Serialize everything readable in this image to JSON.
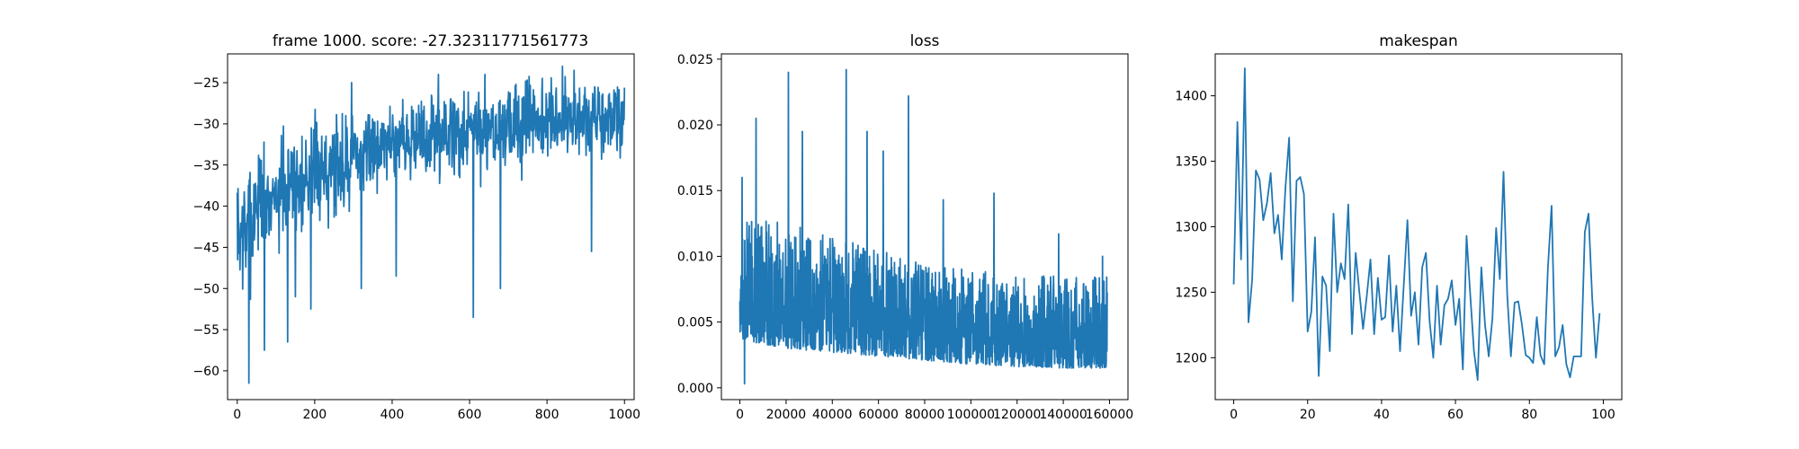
{
  "figure": {
    "background": "#ffffff",
    "line_color": "#1f77b4"
  },
  "chart_data": [
    {
      "type": "line",
      "title": "frame 1000. score: -27.32311771561773",
      "xlabel": "",
      "ylabel": "",
      "xlim": [
        -25,
        1025
      ],
      "ylim": [
        -63.5,
        -21.5
      ],
      "xticks": [
        0,
        200,
        400,
        600,
        800,
        1000
      ],
      "yticks": [
        -60,
        -55,
        -50,
        -45,
        -40,
        -35,
        -30,
        -25
      ],
      "xtick_labels": [
        "0",
        "200",
        "400",
        "600",
        "800",
        "1000"
      ],
      "ytick_labels": [
        "−60",
        "−55",
        "−50",
        "−45",
        "−40",
        "−35",
        "−30",
        "−25"
      ],
      "grid": false,
      "series": [
        {
          "trend": {
            "x": [
              0,
              20,
              50,
              100,
              150,
              200,
              250,
              300,
              400,
              500,
              600,
              700,
              800,
              900,
              1000
            ],
            "y": [
              -45,
              -43,
              -40,
              -38,
              -37,
              -36,
              -35,
              -34,
              -32,
              -31.5,
              -31,
              -30.5,
              -30,
              -29.5,
              -29
            ]
          },
          "band": {
            "x": [
              0,
              30,
              100,
              200,
              300,
              400,
              600,
              800,
              1000
            ],
            "upper": [
              -37,
              -35,
              -30,
              -28,
              -27,
              -27,
              -25,
              -24,
              -25
            ],
            "lower": [
              -56,
              -56,
              -47,
              -45,
              -42,
              -40,
              -39,
              -37,
              -37
            ]
          },
          "spikes": [
            [
              30,
              -61.5
            ],
            [
              70,
              -57.5
            ],
            [
              130,
              -56.5
            ],
            [
              150,
              -51
            ],
            [
              190,
              -52.5
            ],
            [
              320,
              -50
            ],
            [
              410,
              -48.5
            ],
            [
              610,
              -53.5
            ],
            [
              680,
              -50
            ],
            [
              915,
              -45.5
            ],
            [
              295,
              -25
            ],
            [
              520,
              -24
            ],
            [
              640,
              -24
            ],
            [
              840,
              -23
            ],
            [
              870,
              -23.5
            ],
            [
              996,
              -27.3
            ]
          ],
          "n_points": 1000
        }
      ]
    },
    {
      "type": "line",
      "title": "loss",
      "xlabel": "",
      "ylabel": "",
      "xlim": [
        -8000,
        168000
      ],
      "ylim": [
        -0.0009,
        0.0254
      ],
      "xticks": [
        0,
        20000,
        40000,
        60000,
        80000,
        100000,
        120000,
        140000,
        160000
      ],
      "yticks": [
        0.0,
        0.005,
        0.01,
        0.015,
        0.02,
        0.025
      ],
      "xtick_labels": [
        "0",
        "20000",
        "40000",
        "60000",
        "80000",
        "100000",
        "120000",
        "140000",
        "160000"
      ],
      "ytick_labels": [
        "0.000",
        "0.005",
        "0.010",
        "0.015",
        "0.020",
        "0.025"
      ],
      "grid": false,
      "series": [
        {
          "band": {
            "x": [
              0,
              5000,
              20000,
              40000,
              60000,
              80000,
              100000,
              120000,
              140000,
              159000
            ],
            "upper": [
              0.0135,
              0.013,
              0.0125,
              0.0115,
              0.0105,
              0.0095,
              0.009,
              0.0085,
              0.0085,
              0.0085
            ],
            "lower": [
              0.0038,
              0.0035,
              0.003,
              0.0027,
              0.0024,
              0.0021,
              0.0018,
              0.0016,
              0.0015,
              0.0015
            ]
          },
          "spikes": [
            [
              1000,
              0.016
            ],
            [
              7000,
              0.0205
            ],
            [
              21000,
              0.024
            ],
            [
              27000,
              0.0195
            ],
            [
              46000,
              0.0242
            ],
            [
              55000,
              0.0195
            ],
            [
              62000,
              0.018
            ],
            [
              73000,
              0.0222
            ],
            [
              88000,
              0.0143
            ],
            [
              110000,
              0.0148
            ],
            [
              138000,
              0.0117
            ],
            [
              157000,
              0.01
            ],
            [
              2000,
              0.0003
            ]
          ],
          "n_points": 1500
        }
      ]
    },
    {
      "type": "line",
      "title": "makespan",
      "xlabel": "",
      "ylabel": "",
      "xlim": [
        -5,
        105
      ],
      "ylim": [
        1168,
        1432
      ],
      "xticks": [
        0,
        20,
        40,
        60,
        80,
        100
      ],
      "yticks": [
        1200,
        1250,
        1300,
        1350,
        1400
      ],
      "xtick_labels": [
        "0",
        "20",
        "40",
        "60",
        "80",
        "100"
      ],
      "ytick_labels": [
        "1200",
        "1250",
        "1300",
        "1350",
        "1400"
      ],
      "grid": false,
      "series": [
        {
          "x": [
            0,
            1,
            2,
            3,
            4,
            5,
            6,
            7,
            8,
            9,
            10,
            11,
            12,
            13,
            14,
            15,
            16,
            17,
            18,
            19,
            20,
            21,
            22,
            23,
            24,
            25,
            26,
            27,
            28,
            29,
            30,
            31,
            32,
            33,
            34,
            35,
            36,
            37,
            38,
            39,
            40,
            41,
            42,
            43,
            44,
            45,
            46,
            47,
            48,
            49,
            50,
            51,
            52,
            53,
            54,
            55,
            56,
            57,
            58,
            59,
            60,
            61,
            62,
            63,
            64,
            65,
            66,
            67,
            68,
            69,
            70,
            71,
            72,
            73,
            74,
            75,
            76,
            77,
            78,
            79,
            80,
            81,
            82,
            83,
            84,
            85,
            86,
            87,
            88,
            89,
            90,
            91,
            92,
            93,
            94,
            95,
            96,
            97,
            98,
            99
          ],
          "y": [
            1256,
            1380,
            1275,
            1421,
            1227,
            1260,
            1343,
            1336,
            1305,
            1318,
            1341,
            1295,
            1309,
            1275,
            1330,
            1368,
            1243,
            1335,
            1338,
            1325,
            1220,
            1235,
            1292,
            1186,
            1262,
            1255,
            1205,
            1310,
            1250,
            1272,
            1260,
            1317,
            1218,
            1280,
            1250,
            1222,
            1247,
            1275,
            1218,
            1261,
            1229,
            1231,
            1278,
            1220,
            1255,
            1205,
            1255,
            1305,
            1232,
            1250,
            1210,
            1269,
            1280,
            1228,
            1200,
            1255,
            1210,
            1240,
            1245,
            1259,
            1225,
            1245,
            1191,
            1293,
            1248,
            1205,
            1183,
            1269,
            1225,
            1201,
            1230,
            1299,
            1260,
            1342,
            1248,
            1201,
            1242,
            1243,
            1225,
            1202,
            1200,
            1196,
            1231,
            1202,
            1195,
            1268,
            1316,
            1201,
            1208,
            1225,
            1195,
            1185,
            1201,
            1201,
            1201,
            1296,
            1310,
            1245,
            1200,
            1234
          ]
        }
      ]
    }
  ]
}
